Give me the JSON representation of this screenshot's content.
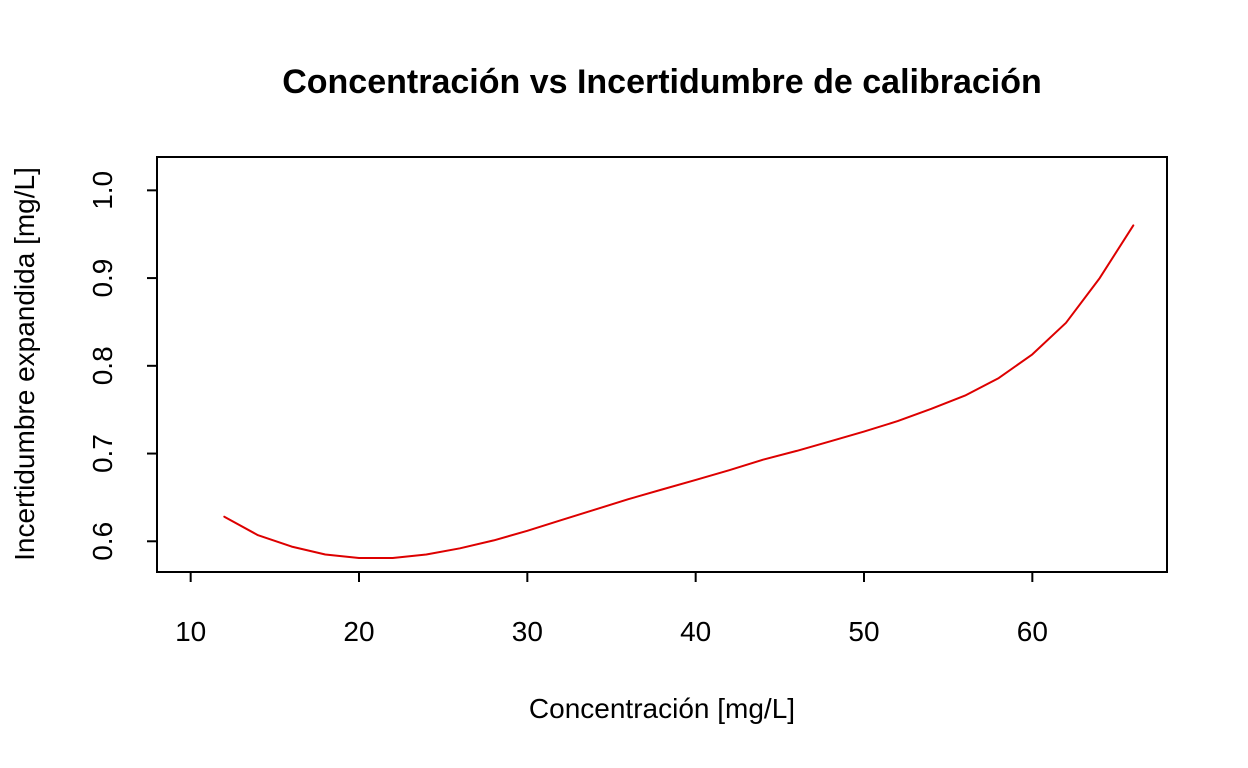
{
  "chart_data": {
    "type": "line",
    "title": "Concentración vs Incertidumbre de calibración",
    "xlabel": "Concentración [mg/L]",
    "ylabel": "Incertidumbre expandida [mg/L]",
    "xlim": [
      8,
      68
    ],
    "ylim": [
      0.565,
      1.038
    ],
    "x_ticks": [
      10,
      20,
      30,
      40,
      50,
      60
    ],
    "x_tick_labels": [
      "10",
      "20",
      "30",
      "40",
      "50",
      "60"
    ],
    "y_ticks": [
      0.6,
      0.7,
      0.8,
      0.9,
      1.0
    ],
    "y_tick_labels": [
      "0.6",
      "0.7",
      "0.8",
      "0.9",
      "1.0"
    ],
    "grid": false,
    "legend": "none",
    "colors": {
      "series": "#dd0000",
      "axes": "#000000",
      "background": "#ffffff"
    },
    "series": [
      {
        "x": [
          12,
          14,
          16,
          18,
          20,
          22,
          24,
          26,
          28,
          30,
          32,
          34,
          36,
          38,
          40,
          42,
          44,
          46,
          48,
          50,
          52,
          54,
          56,
          58,
          60,
          62,
          64,
          66
        ],
        "values": [
          0.628,
          0.607,
          0.594,
          0.585,
          0.581,
          0.581,
          0.585,
          0.592,
          0.601,
          0.612,
          0.624,
          0.636,
          0.648,
          0.659,
          0.67,
          0.681,
          0.693,
          0.703,
          0.714,
          0.725,
          0.737,
          0.751,
          0.766,
          0.786,
          0.813,
          0.849,
          0.9,
          0.96
        ]
      }
    ]
  }
}
